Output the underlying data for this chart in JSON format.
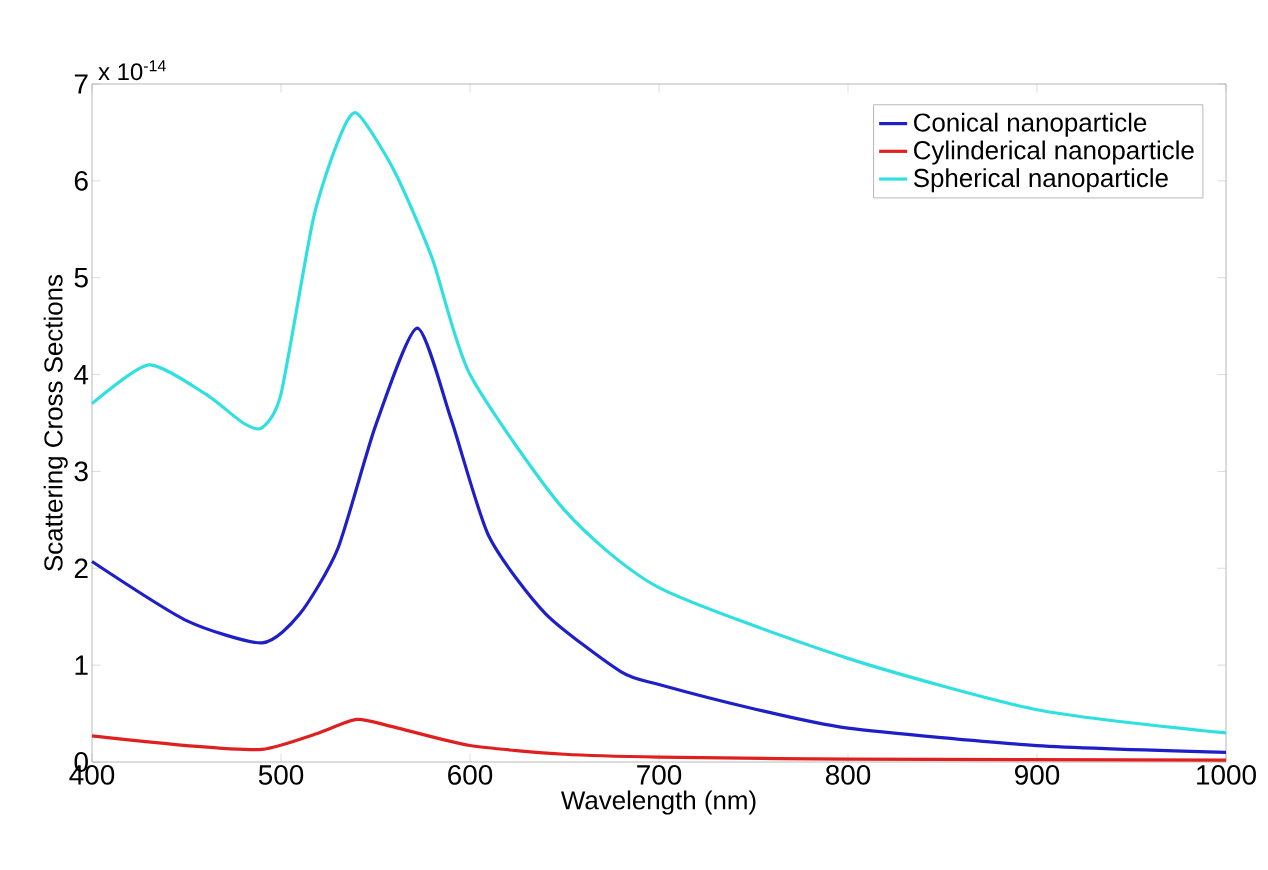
{
  "chart_data": {
    "type": "line",
    "xlabel": "Wavelength (nm)",
    "ylabel": "Scattering Cross Sections",
    "annotations": [
      "x 10$^{-14}$"
    ],
    "xlim": [
      400,
      1000
    ],
    "ylim": [
      0,
      7
    ],
    "xticks": [
      400,
      500,
      600,
      700,
      800,
      900,
      1000
    ],
    "yticks": [
      0,
      1,
      2,
      3,
      4,
      5,
      6,
      7
    ],
    "grid": false,
    "legend": "top right",
    "marker": "none",
    "line_style": "solid",
    "series": [
      {
        "name": "Conical nanoparticle",
        "color": "#1f1fc8",
        "x": [
          400,
          450,
          490,
          510,
          530,
          550,
          572,
          590,
          610,
          640,
          680,
          700,
          750,
          800,
          900,
          1000
        ],
        "values": [
          2.07,
          1.46,
          1.23,
          1.53,
          2.2,
          3.47,
          4.48,
          3.54,
          2.33,
          1.53,
          0.93,
          0.8,
          0.55,
          0.35,
          0.17,
          0.1
        ]
      },
      {
        "name": "Cylinderical nanoparticle",
        "color": "#e02020",
        "x": [
          400,
          450,
          490,
          520,
          540,
          560,
          600,
          650,
          700,
          800,
          1000
        ],
        "values": [
          0.27,
          0.17,
          0.13,
          0.3,
          0.44,
          0.36,
          0.17,
          0.08,
          0.05,
          0.03,
          0.02
        ]
      },
      {
        "name": "Spherical nanoparticle",
        "color": "#30e0e0",
        "x": [
          400,
          430,
          460,
          480,
          490,
          500,
          517,
          530,
          540,
          560,
          580,
          600,
          650,
          700,
          800,
          900,
          1000
        ],
        "values": [
          3.7,
          4.1,
          3.8,
          3.5,
          3.45,
          3.8,
          5.6,
          6.4,
          6.7,
          6.1,
          5.2,
          4.0,
          2.6,
          1.8,
          1.07,
          0.54,
          0.3
        ]
      }
    ]
  }
}
